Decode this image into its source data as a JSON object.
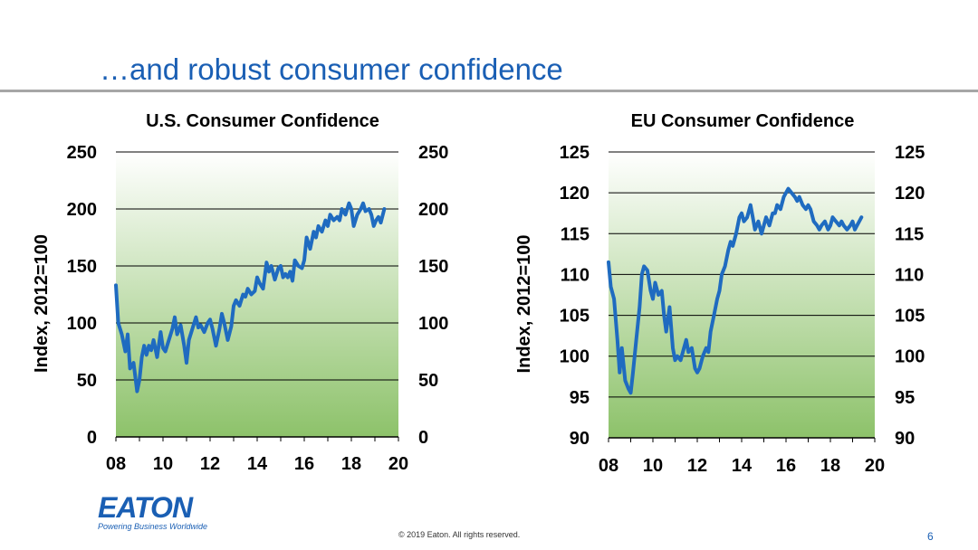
{
  "slide": {
    "title": "…and robust consumer confidence",
    "brand": "EATON",
    "tagline": "Powering Business Worldwide",
    "copyright": "© 2019 Eaton. All rights reserved.",
    "page_number": "6"
  },
  "colors": {
    "title": "#1a5fb4",
    "line": "#1f6bc0",
    "plot_fill_top": "#ffffff",
    "plot_fill_bottom": "#8dc26a",
    "rule": "#a6a6a6"
  },
  "chart_data": [
    {
      "type": "line",
      "title": "U.S. Consumer Confidence",
      "ylabel": "Index, 2012=100",
      "xlabel": "",
      "xlim": [
        8,
        20
      ],
      "ylim": [
        0,
        250
      ],
      "xticks": [
        "08",
        "10",
        "12",
        "14",
        "16",
        "18",
        "20"
      ],
      "yticks_left": [
        "0",
        "50",
        "100",
        "150",
        "200",
        "250"
      ],
      "yticks_right": [
        "0",
        "50",
        "100",
        "150",
        "200",
        "250"
      ],
      "grid": true,
      "series": [
        {
          "x": [
            8.0,
            8.1,
            8.25,
            8.4,
            8.5,
            8.6,
            8.75,
            8.9,
            9.0,
            9.1,
            9.2,
            9.3,
            9.4,
            9.5,
            9.6,
            9.75,
            9.9,
            10.0,
            10.1,
            10.25,
            10.4,
            10.5,
            10.6,
            10.75,
            10.9,
            11.0,
            11.1,
            11.25,
            11.4,
            11.5,
            11.6,
            11.75,
            11.9,
            12.0,
            12.1,
            12.25,
            12.4,
            12.5,
            12.6,
            12.75,
            12.9,
            13.0,
            13.1,
            13.25,
            13.4,
            13.5,
            13.6,
            13.75,
            13.9,
            14.0,
            14.1,
            14.25,
            14.4,
            14.5,
            14.6,
            14.75,
            14.9,
            15.0,
            15.1,
            15.2,
            15.3,
            15.4,
            15.5,
            15.6,
            15.75,
            15.9,
            16.0,
            16.1,
            16.25,
            16.4,
            16.5,
            16.6,
            16.75,
            16.9,
            17.0,
            17.1,
            17.25,
            17.4,
            17.5,
            17.6,
            17.75,
            17.9,
            18.0,
            18.1,
            18.25,
            18.4,
            18.5,
            18.6,
            18.75,
            18.85,
            18.95,
            19.05,
            19.15,
            19.25,
            19.4
          ],
          "y": [
            133,
            100,
            90,
            75,
            90,
            60,
            65,
            40,
            50,
            70,
            80,
            72,
            80,
            76,
            85,
            70,
            92,
            78,
            75,
            85,
            95,
            105,
            90,
            98,
            80,
            65,
            85,
            95,
            105,
            96,
            98,
            92,
            100,
            103,
            95,
            80,
            95,
            108,
            100,
            85,
            97,
            115,
            120,
            115,
            125,
            123,
            130,
            125,
            128,
            140,
            135,
            130,
            153,
            145,
            150,
            138,
            148,
            150,
            140,
            143,
            140,
            145,
            137,
            155,
            150,
            148,
            155,
            175,
            165,
            180,
            175,
            185,
            180,
            190,
            185,
            195,
            190,
            193,
            190,
            200,
            195,
            205,
            200,
            185,
            195,
            200,
            205,
            198,
            200,
            195,
            185,
            190,
            193,
            188,
            200
          ]
        }
      ]
    },
    {
      "type": "line",
      "title": "EU Consumer Confidence",
      "ylabel": "Index, 2012=100",
      "xlabel": "",
      "xlim": [
        8,
        20
      ],
      "ylim": [
        90,
        125
      ],
      "xticks": [
        "08",
        "10",
        "12",
        "14",
        "16",
        "18",
        "20"
      ],
      "yticks_left": [
        "90",
        "95",
        "100",
        "105",
        "110",
        "115",
        "120",
        "125"
      ],
      "yticks_right": [
        "90",
        "95",
        "100",
        "105",
        "110",
        "115",
        "120",
        "125"
      ],
      "grid": true,
      "series": [
        {
          "x": [
            8.0,
            8.1,
            8.25,
            8.4,
            8.5,
            8.6,
            8.75,
            8.9,
            9.0,
            9.1,
            9.25,
            9.4,
            9.5,
            9.6,
            9.75,
            9.9,
            10.0,
            10.1,
            10.25,
            10.4,
            10.5,
            10.6,
            10.75,
            10.9,
            11.0,
            11.1,
            11.25,
            11.4,
            11.5,
            11.6,
            11.75,
            11.9,
            12.0,
            12.1,
            12.25,
            12.4,
            12.5,
            12.6,
            12.75,
            12.9,
            13.0,
            13.1,
            13.25,
            13.4,
            13.5,
            13.6,
            13.75,
            13.9,
            14.0,
            14.1,
            14.25,
            14.4,
            14.5,
            14.6,
            14.75,
            14.9,
            15.0,
            15.1,
            15.25,
            15.4,
            15.5,
            15.6,
            15.75,
            15.9,
            16.0,
            16.1,
            16.25,
            16.4,
            16.5,
            16.6,
            16.75,
            16.9,
            17.0,
            17.1,
            17.25,
            17.4,
            17.5,
            17.6,
            17.75,
            17.9,
            18.0,
            18.1,
            18.25,
            18.4,
            18.5,
            18.6,
            18.75,
            18.9,
            19.0,
            19.1,
            19.2,
            19.3,
            19.4
          ],
          "y": [
            111.5,
            108.5,
            107,
            102,
            98,
            101,
            97,
            96,
            95.5,
            98,
            102,
            106,
            110,
            111,
            110.5,
            108,
            107,
            109,
            107.5,
            108,
            105,
            103,
            106,
            101,
            99.5,
            100,
            99.5,
            101,
            102,
            100.5,
            101,
            98.5,
            98,
            98.5,
            100,
            101,
            100.5,
            103,
            105,
            107,
            108,
            110,
            111,
            113,
            114,
            113.5,
            115,
            117,
            117.5,
            116.5,
            117,
            118.5,
            117,
            115.5,
            116.5,
            115,
            116,
            117,
            116,
            117.5,
            117.5,
            118.5,
            118,
            119.5,
            120,
            120.5,
            120,
            119.5,
            119,
            119.5,
            118.5,
            118,
            118.5,
            118,
            116.5,
            116,
            115.5,
            116,
            116.5,
            115.5,
            116,
            117,
            116.5,
            116,
            116.5,
            116,
            115.5,
            116,
            116.5,
            115.5,
            116,
            116.5,
            117
          ]
        }
      ]
    }
  ]
}
